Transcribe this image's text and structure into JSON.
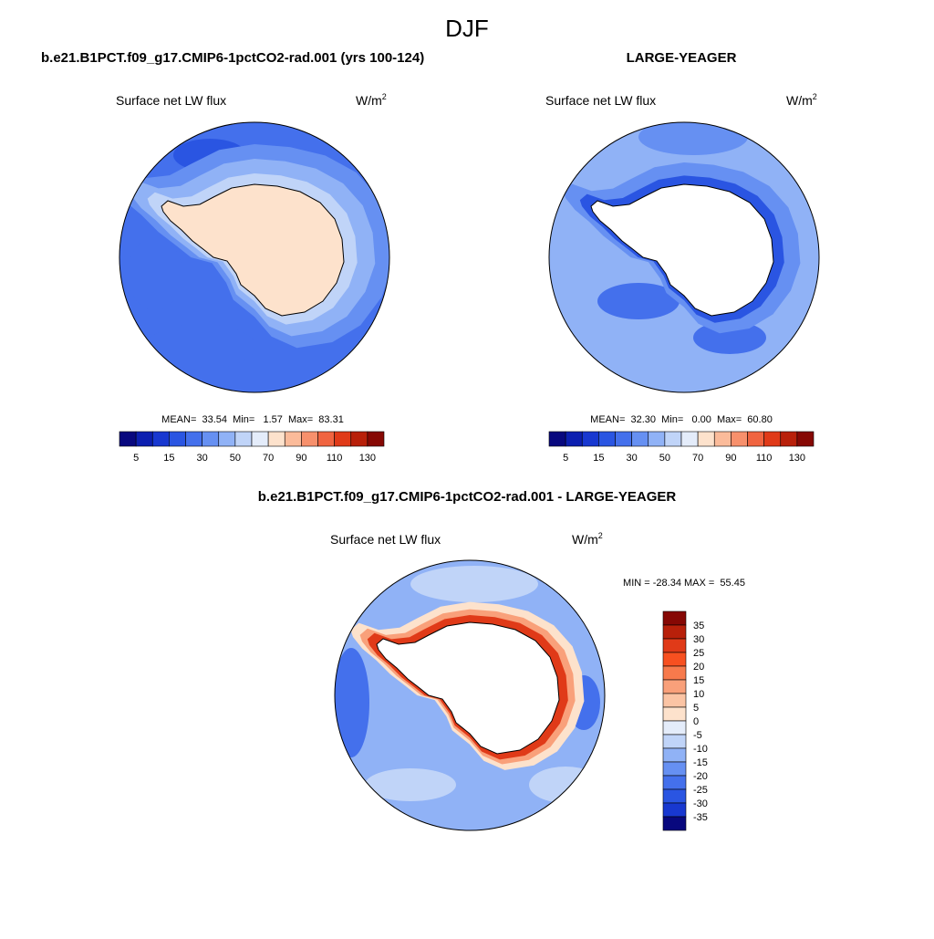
{
  "title": "DJF",
  "panels": [
    {
      "title": "b.e21.B1PCT.f09_g17.CMIP6-1pctCO2-rad.001 (yrs 100-124)",
      "variable": "Surface net LW flux",
      "units": {
        "base": "W/m",
        "sup": "2"
      },
      "stats": "MEAN=  33.54  Min=   1.57  Max=  83.31"
    },
    {
      "title": "LARGE-YEAGER",
      "variable": "Surface net LW flux",
      "units": {
        "base": "W/m",
        "sup": "2"
      },
      "stats": "MEAN=  32.30  Min=   0.00  Max=  60.80"
    },
    {
      "title": "b.e21.B1PCT.f09_g17.CMIP6-1pctCO2-rad.001 - LARGE-YEAGER",
      "variable": "Surface net LW flux",
      "units": {
        "base": "W/m",
        "sup": "2"
      },
      "stats": "MIN = -28.34 MAX =  55.45"
    }
  ],
  "colorbars": [
    {
      "labels": [
        "5",
        "15",
        "30",
        "50",
        "70",
        "90",
        "110",
        "130"
      ],
      "colors": [
        "#08087e",
        "#0c1fb0",
        "#1838d0",
        "#2a55e2",
        "#4470ec",
        "#6690f2",
        "#90b2f6",
        "#c0d4f8",
        "#e4ecfa",
        "#fde2cc",
        "#fbbb9a",
        "#f7906c",
        "#f06440",
        "#e03a18",
        "#b8200a",
        "#860804"
      ]
    },
    {
      "labels": [
        "35",
        "30",
        "25",
        "20",
        "15",
        "10",
        "5",
        "0",
        "-5",
        "-10",
        "-15",
        "-20",
        "-25",
        "-30",
        "-35"
      ],
      "colors": [
        "#860804",
        "#b8200a",
        "#e03a18",
        "#f75020",
        "#f77a4c",
        "#f9a07a",
        "#fbc4a4",
        "#fde2cc",
        "#e4ecfa",
        "#c0d4f8",
        "#90b2f6",
        "#6690f2",
        "#4470ec",
        "#2a55e2",
        "#1838d0",
        "#08087e"
      ]
    }
  ]
}
